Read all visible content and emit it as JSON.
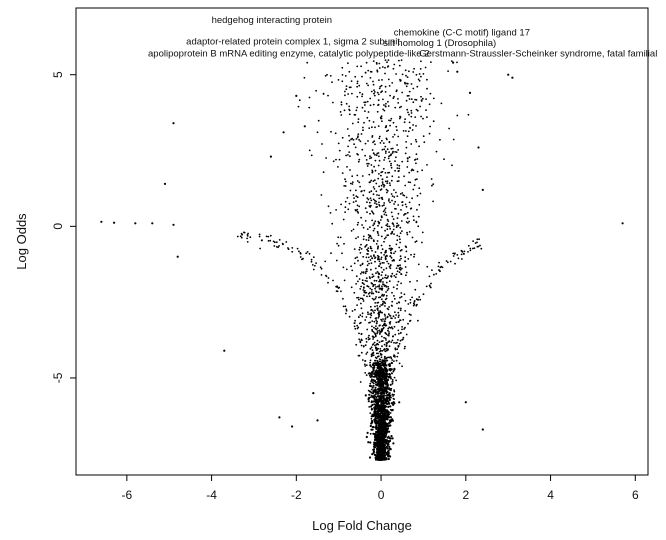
{
  "chart_data": {
    "type": "scatter",
    "title": "",
    "xlabel": "Log Fold Change",
    "ylabel": "Log Odds",
    "xlim": [
      -7.2,
      6.3
    ],
    "ylim": [
      -8.2,
      7.2
    ],
    "x_ticks": [
      -6,
      -4,
      -2,
      0,
      2,
      4,
      6
    ],
    "y_ticks": [
      -5,
      0,
      5
    ],
    "x_tick_labels": [
      "-6",
      "-4",
      "-2",
      "0",
      "2",
      "4",
      "6"
    ],
    "y_tick_labels": [
      "-5",
      "0",
      "5"
    ],
    "grid": false,
    "legend": "none",
    "colors": {
      "points": "#000000",
      "axes": "#000000"
    },
    "annotations": [
      {
        "text": "hedgehog interacting protein",
        "x": -4.0,
        "y": 6.7
      },
      {
        "text": "chemokine (C-C motif) ligand 17",
        "x": 0.3,
        "y": 6.3
      },
      {
        "text": "adaptor-related protein complex 1, sigma 2 subunit",
        "x": -4.6,
        "y": 6.0
      },
      {
        "text": "slit homolog 1 (Drosophila)",
        "x": 0.05,
        "y": 5.95
      },
      {
        "text": "apolipoprotein B mRNA editing enzyme, catalytic polypeptide-like 2",
        "x": -5.5,
        "y": 5.6
      },
      {
        "text": "Gerstmann-Straussler-Scheinker syndrome, fatal familial",
        "x": 0.9,
        "y": 5.6
      }
    ],
    "outliers": [
      {
        "x": -6.6,
        "y": 0.15
      },
      {
        "x": -6.3,
        "y": 0.12
      },
      {
        "x": -5.8,
        "y": 0.1
      },
      {
        "x": -5.4,
        "y": 0.1
      },
      {
        "x": -4.9,
        "y": 0.05
      },
      {
        "x": -4.8,
        "y": -1.0
      },
      {
        "x": -5.1,
        "y": 1.4
      },
      {
        "x": -4.9,
        "y": 3.4
      },
      {
        "x": -3.7,
        "y": -4.1
      },
      {
        "x": -2.4,
        "y": -6.3
      },
      {
        "x": -2.1,
        "y": -6.6
      },
      {
        "x": -1.5,
        "y": -6.4
      },
      {
        "x": -1.6,
        "y": -5.5
      },
      {
        "x": -2.6,
        "y": 2.3
      },
      {
        "x": -2.3,
        "y": 3.1
      },
      {
        "x": -2.0,
        "y": 4.3
      },
      {
        "x": -1.8,
        "y": 3.3
      },
      {
        "x": 2.0,
        "y": -5.8
      },
      {
        "x": 2.4,
        "y": -6.7
      },
      {
        "x": 2.3,
        "y": 2.6
      },
      {
        "x": 2.4,
        "y": 1.2
      },
      {
        "x": 2.1,
        "y": 4.4
      },
      {
        "x": 3.0,
        "y": 5.0
      },
      {
        "x": 3.1,
        "y": 4.9
      },
      {
        "x": 5.7,
        "y": 0.1
      },
      {
        "x": 1.8,
        "y": 5.1
      },
      {
        "x": 1.7,
        "y": 5.4
      }
    ],
    "distribution_note_free": true
  }
}
